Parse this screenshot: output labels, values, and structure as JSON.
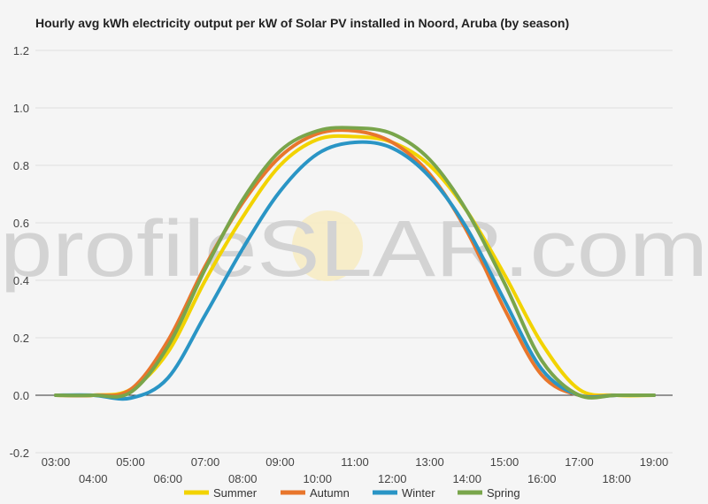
{
  "chart_data": {
    "type": "line",
    "title": "Hourly avg kWh electricity output per kW of Solar PV installed in Noord, Aruba (by season)",
    "xlabel": "",
    "ylabel": "",
    "x": [
      "03:00",
      "04:00",
      "05:00",
      "06:00",
      "07:00",
      "08:00",
      "09:00",
      "10:00",
      "11:00",
      "12:00",
      "13:00",
      "14:00",
      "15:00",
      "16:00",
      "17:00",
      "18:00",
      "19:00"
    ],
    "ylim": [
      -0.2,
      1.2
    ],
    "yticks": [
      "-0.2",
      "0.0",
      "0.2",
      "0.4",
      "0.6",
      "0.8",
      "1.0",
      "1.2"
    ],
    "grid": true,
    "legend_position": "bottom",
    "series": [
      {
        "name": "Summer",
        "color": "#f2d300",
        "values": [
          0.0,
          0.0,
          0.02,
          0.15,
          0.4,
          0.62,
          0.8,
          0.89,
          0.9,
          0.88,
          0.8,
          0.64,
          0.42,
          0.18,
          0.02,
          0.0,
          0.0
        ]
      },
      {
        "name": "Autumn",
        "color": "#e8762c",
        "values": [
          0.0,
          0.0,
          0.02,
          0.19,
          0.45,
          0.67,
          0.83,
          0.91,
          0.92,
          0.88,
          0.77,
          0.57,
          0.3,
          0.07,
          0.0,
          0.0,
          0.0
        ]
      },
      {
        "name": "Winter",
        "color": "#2a95c5",
        "values": [
          0.0,
          0.0,
          -0.01,
          0.06,
          0.28,
          0.51,
          0.71,
          0.84,
          0.88,
          0.86,
          0.76,
          0.58,
          0.33,
          0.09,
          0.0,
          0.0,
          0.0
        ]
      },
      {
        "name": "Spring",
        "color": "#79a54b",
        "values": [
          0.0,
          0.0,
          0.01,
          0.17,
          0.44,
          0.68,
          0.85,
          0.92,
          0.93,
          0.91,
          0.82,
          0.64,
          0.39,
          0.12,
          0.0,
          0.0,
          0.0
        ]
      }
    ]
  },
  "watermark": {
    "left": "profile",
    "middle": "S",
    "right": "LAR.com"
  }
}
